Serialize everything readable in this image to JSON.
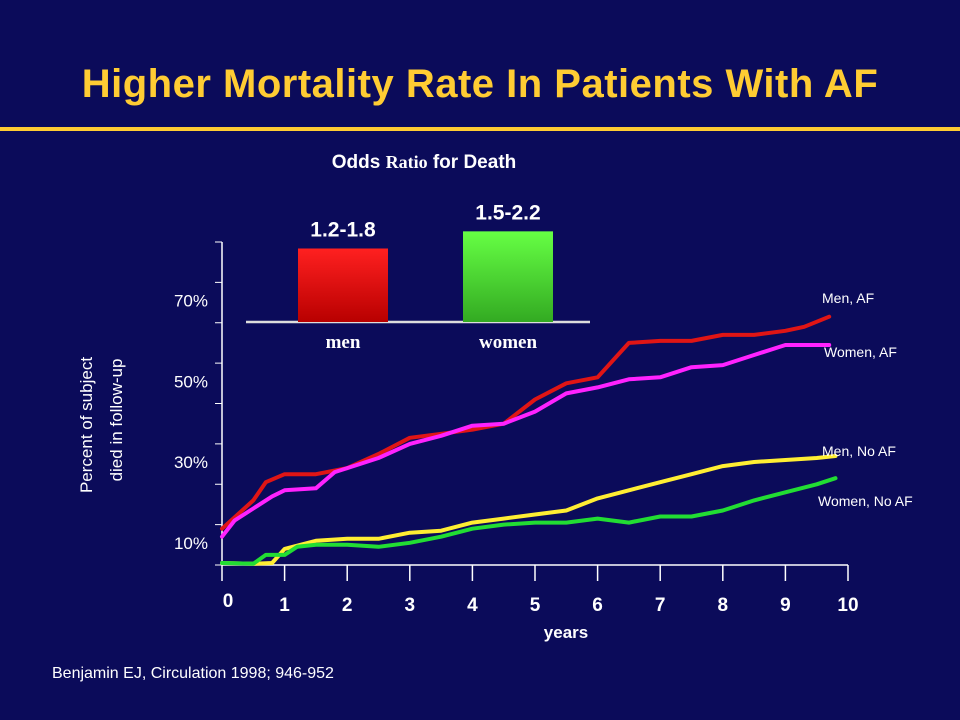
{
  "slide": {
    "title": "Higher Mortality Rate In Patients With AF",
    "citation": "Benjamin EJ, Circulation 1998; 946-952"
  },
  "colors": {
    "background": "#0b0b5a",
    "title": "#ffcc33",
    "men_af": "#e01515",
    "women_af": "#ff22ff",
    "men_no_af": "#ffee33",
    "women_no_af": "#22dd33",
    "bar_men": "#ee1111",
    "bar_women": "#44ee33"
  },
  "chart_data": [
    {
      "type": "line",
      "title": "",
      "xlabel": "years",
      "ylabel_line1": "Percent of subject",
      "ylabel_line2": "died in follow-up",
      "xlim": [
        0,
        10
      ],
      "ylim": [
        0,
        80
      ],
      "x_ticks": [
        "0",
        "1",
        "2",
        "3",
        "4",
        "5",
        "6",
        "7",
        "8",
        "9",
        "10"
      ],
      "y_tick_labels": [
        {
          "value": 10,
          "label": "10%"
        },
        {
          "value": 30,
          "label": "30%"
        },
        {
          "value": 50,
          "label": "50%"
        },
        {
          "value": 70,
          "label": "70%"
        }
      ],
      "grid": false,
      "legend": "direct labels at right",
      "series": [
        {
          "name": "Men, AF",
          "color": "#e01515",
          "points": [
            [
              0,
              9
            ],
            [
              0.5,
              16
            ],
            [
              0.7,
              20.5
            ],
            [
              1,
              22.5
            ],
            [
              1.5,
              22.5
            ],
            [
              2,
              24
            ],
            [
              2.5,
              27.5
            ],
            [
              3,
              31.5
            ],
            [
              3.5,
              32.5
            ],
            [
              4,
              33.5
            ],
            [
              4.5,
              35
            ],
            [
              5,
              41
            ],
            [
              5.5,
              45
            ],
            [
              6,
              46.5
            ],
            [
              6.5,
              55
            ],
            [
              7,
              55.5
            ],
            [
              7.5,
              55.5
            ],
            [
              8,
              57
            ],
            [
              8.5,
              57
            ],
            [
              9,
              58
            ],
            [
              9.3,
              59
            ],
            [
              9.7,
              61.5
            ]
          ]
        },
        {
          "name": "Women, AF",
          "color": "#ff22ff",
          "points": [
            [
              0,
              7
            ],
            [
              0.2,
              11
            ],
            [
              0.5,
              14
            ],
            [
              0.8,
              17
            ],
            [
              1,
              18.5
            ],
            [
              1.5,
              19
            ],
            [
              1.8,
              23
            ],
            [
              2,
              24
            ],
            [
              2.5,
              26.5
            ],
            [
              3,
              30
            ],
            [
              3.5,
              32
            ],
            [
              4,
              34.5
            ],
            [
              4.5,
              35
            ],
            [
              5,
              38
            ],
            [
              5.5,
              42.5
            ],
            [
              6,
              44
            ],
            [
              6.5,
              46
            ],
            [
              7,
              46.5
            ],
            [
              7.5,
              49
            ],
            [
              8,
              49.5
            ],
            [
              8.5,
              52
            ],
            [
              9,
              54.5
            ],
            [
              9.7,
              54.5
            ]
          ]
        },
        {
          "name": "Men, No AF",
          "color": "#ffee33",
          "points": [
            [
              0,
              0.5
            ],
            [
              0.5,
              0.3
            ],
            [
              0.8,
              0.5
            ],
            [
              1,
              4
            ],
            [
              1.5,
              6
            ],
            [
              2,
              6.5
            ],
            [
              2.5,
              6.5
            ],
            [
              3,
              8
            ],
            [
              3.5,
              8.5
            ],
            [
              4,
              10.5
            ],
            [
              4.5,
              11.5
            ],
            [
              5,
              12.5
            ],
            [
              5.5,
              13.5
            ],
            [
              6,
              16.5
            ],
            [
              6.5,
              18.5
            ],
            [
              7,
              20.5
            ],
            [
              7.5,
              22.5
            ],
            [
              8,
              24.5
            ],
            [
              8.5,
              25.5
            ],
            [
              9,
              26
            ],
            [
              9.5,
              26.5
            ],
            [
              9.8,
              27
            ]
          ]
        },
        {
          "name": "Women, No AF",
          "color": "#22dd33",
          "points": [
            [
              0,
              0.5
            ],
            [
              0.5,
              0.3
            ],
            [
              0.7,
              2.5
            ],
            [
              1,
              2.5
            ],
            [
              1.2,
              4.5
            ],
            [
              1.5,
              5
            ],
            [
              2,
              5
            ],
            [
              2.5,
              4.5
            ],
            [
              3,
              5.5
            ],
            [
              3.5,
              7
            ],
            [
              4,
              9
            ],
            [
              4.5,
              10
            ],
            [
              5,
              10.5
            ],
            [
              5.5,
              10.5
            ],
            [
              6,
              11.5
            ],
            [
              6.5,
              10.5
            ],
            [
              7,
              12
            ],
            [
              7.5,
              12
            ],
            [
              8,
              13.5
            ],
            [
              8.5,
              16
            ],
            [
              9,
              18
            ],
            [
              9.5,
              20
            ],
            [
              9.8,
              21.5
            ]
          ]
        }
      ]
    },
    {
      "type": "bar",
      "title": "Odds Ratio for Death",
      "title_parts": [
        "Odds ",
        "Ratio",
        " for Death"
      ],
      "categories": [
        "men",
        "women"
      ],
      "value_labels": [
        "1.2-1.8",
        "1.5-2.2"
      ],
      "values": [
        1.5,
        1.85
      ],
      "ylim": [
        0,
        2.0
      ]
    }
  ]
}
